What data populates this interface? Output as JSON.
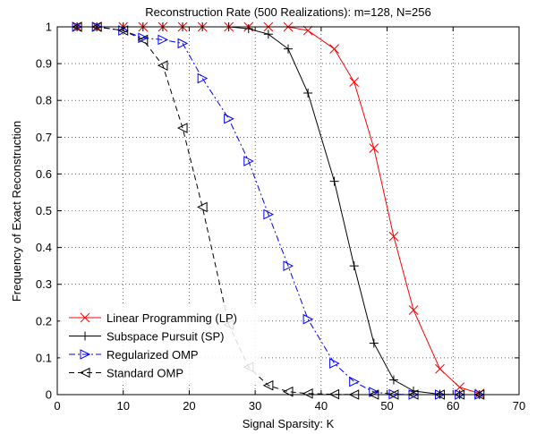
{
  "chart_data": {
    "type": "line",
    "title": "Reconstruction Rate (500 Realizations): m=128, N=256",
    "xlabel": "Signal Sparsity: K",
    "ylabel": "Frequency of Exact Reconstruction",
    "xlim": [
      0,
      70
    ],
    "ylim": [
      0,
      1
    ],
    "xticks": [
      0,
      10,
      20,
      30,
      40,
      50,
      60,
      70
    ],
    "yticks": [
      0,
      0.1,
      0.2,
      0.3,
      0.4,
      0.5,
      0.6,
      0.7,
      0.8,
      0.9,
      1
    ],
    "grid": true,
    "grid_style": "dotted",
    "legend_position": "bottom-left",
    "series": [
      {
        "name": "Linear Programming (LP)",
        "color": "#ff0000",
        "line_style": "solid",
        "marker": "x",
        "x": [
          3,
          6,
          10,
          13,
          16,
          19,
          22,
          26,
          29,
          32,
          35,
          38,
          42,
          45,
          48,
          51,
          54,
          58,
          61,
          64
        ],
        "y": [
          1,
          1,
          1,
          1,
          1,
          1,
          1,
          1,
          1,
          1,
          1,
          0.99,
          0.94,
          0.85,
          0.67,
          0.43,
          0.23,
          0.07,
          0.02,
          0.003
        ]
      },
      {
        "name": "Subspace Pursuit (SP)",
        "color": "#000000",
        "line_style": "solid",
        "marker": "+",
        "x": [
          3,
          6,
          10,
          13,
          16,
          19,
          22,
          26,
          29,
          32,
          35,
          38,
          42,
          45,
          48,
          51,
          54,
          58,
          61,
          64
        ],
        "y": [
          1,
          1,
          1,
          1,
          1,
          1,
          1,
          1,
          0.995,
          0.98,
          0.94,
          0.82,
          0.58,
          0.35,
          0.14,
          0.04,
          0.01,
          0.001,
          0,
          0
        ]
      },
      {
        "name": "Regularized OMP",
        "color": "#0000ff",
        "line_style": "dashdot",
        "marker": "triangle-right",
        "x": [
          3,
          6,
          10,
          13,
          16,
          19,
          22,
          26,
          29,
          32,
          35,
          38,
          42,
          45,
          48,
          51,
          54,
          58,
          61,
          64
        ],
        "y": [
          1,
          1,
          0.99,
          0.97,
          0.965,
          0.955,
          0.86,
          0.75,
          0.635,
          0.49,
          0.35,
          0.205,
          0.085,
          0.035,
          0.007,
          0.001,
          0,
          0,
          0,
          0
        ]
      },
      {
        "name": "Standard OMP",
        "color": "#000000",
        "line_style": "dashed",
        "marker": "triangle-left",
        "x": [
          3,
          6,
          10,
          13,
          16,
          19,
          22,
          26,
          29,
          32,
          35,
          38,
          42,
          45,
          48,
          51,
          54,
          58,
          61,
          64
        ],
        "y": [
          1,
          1,
          0.99,
          0.965,
          0.895,
          0.725,
          0.51,
          0.19,
          0.075,
          0.025,
          0.008,
          0.003,
          0.001,
          0,
          0,
          0,
          0,
          0,
          0,
          0
        ]
      }
    ]
  }
}
